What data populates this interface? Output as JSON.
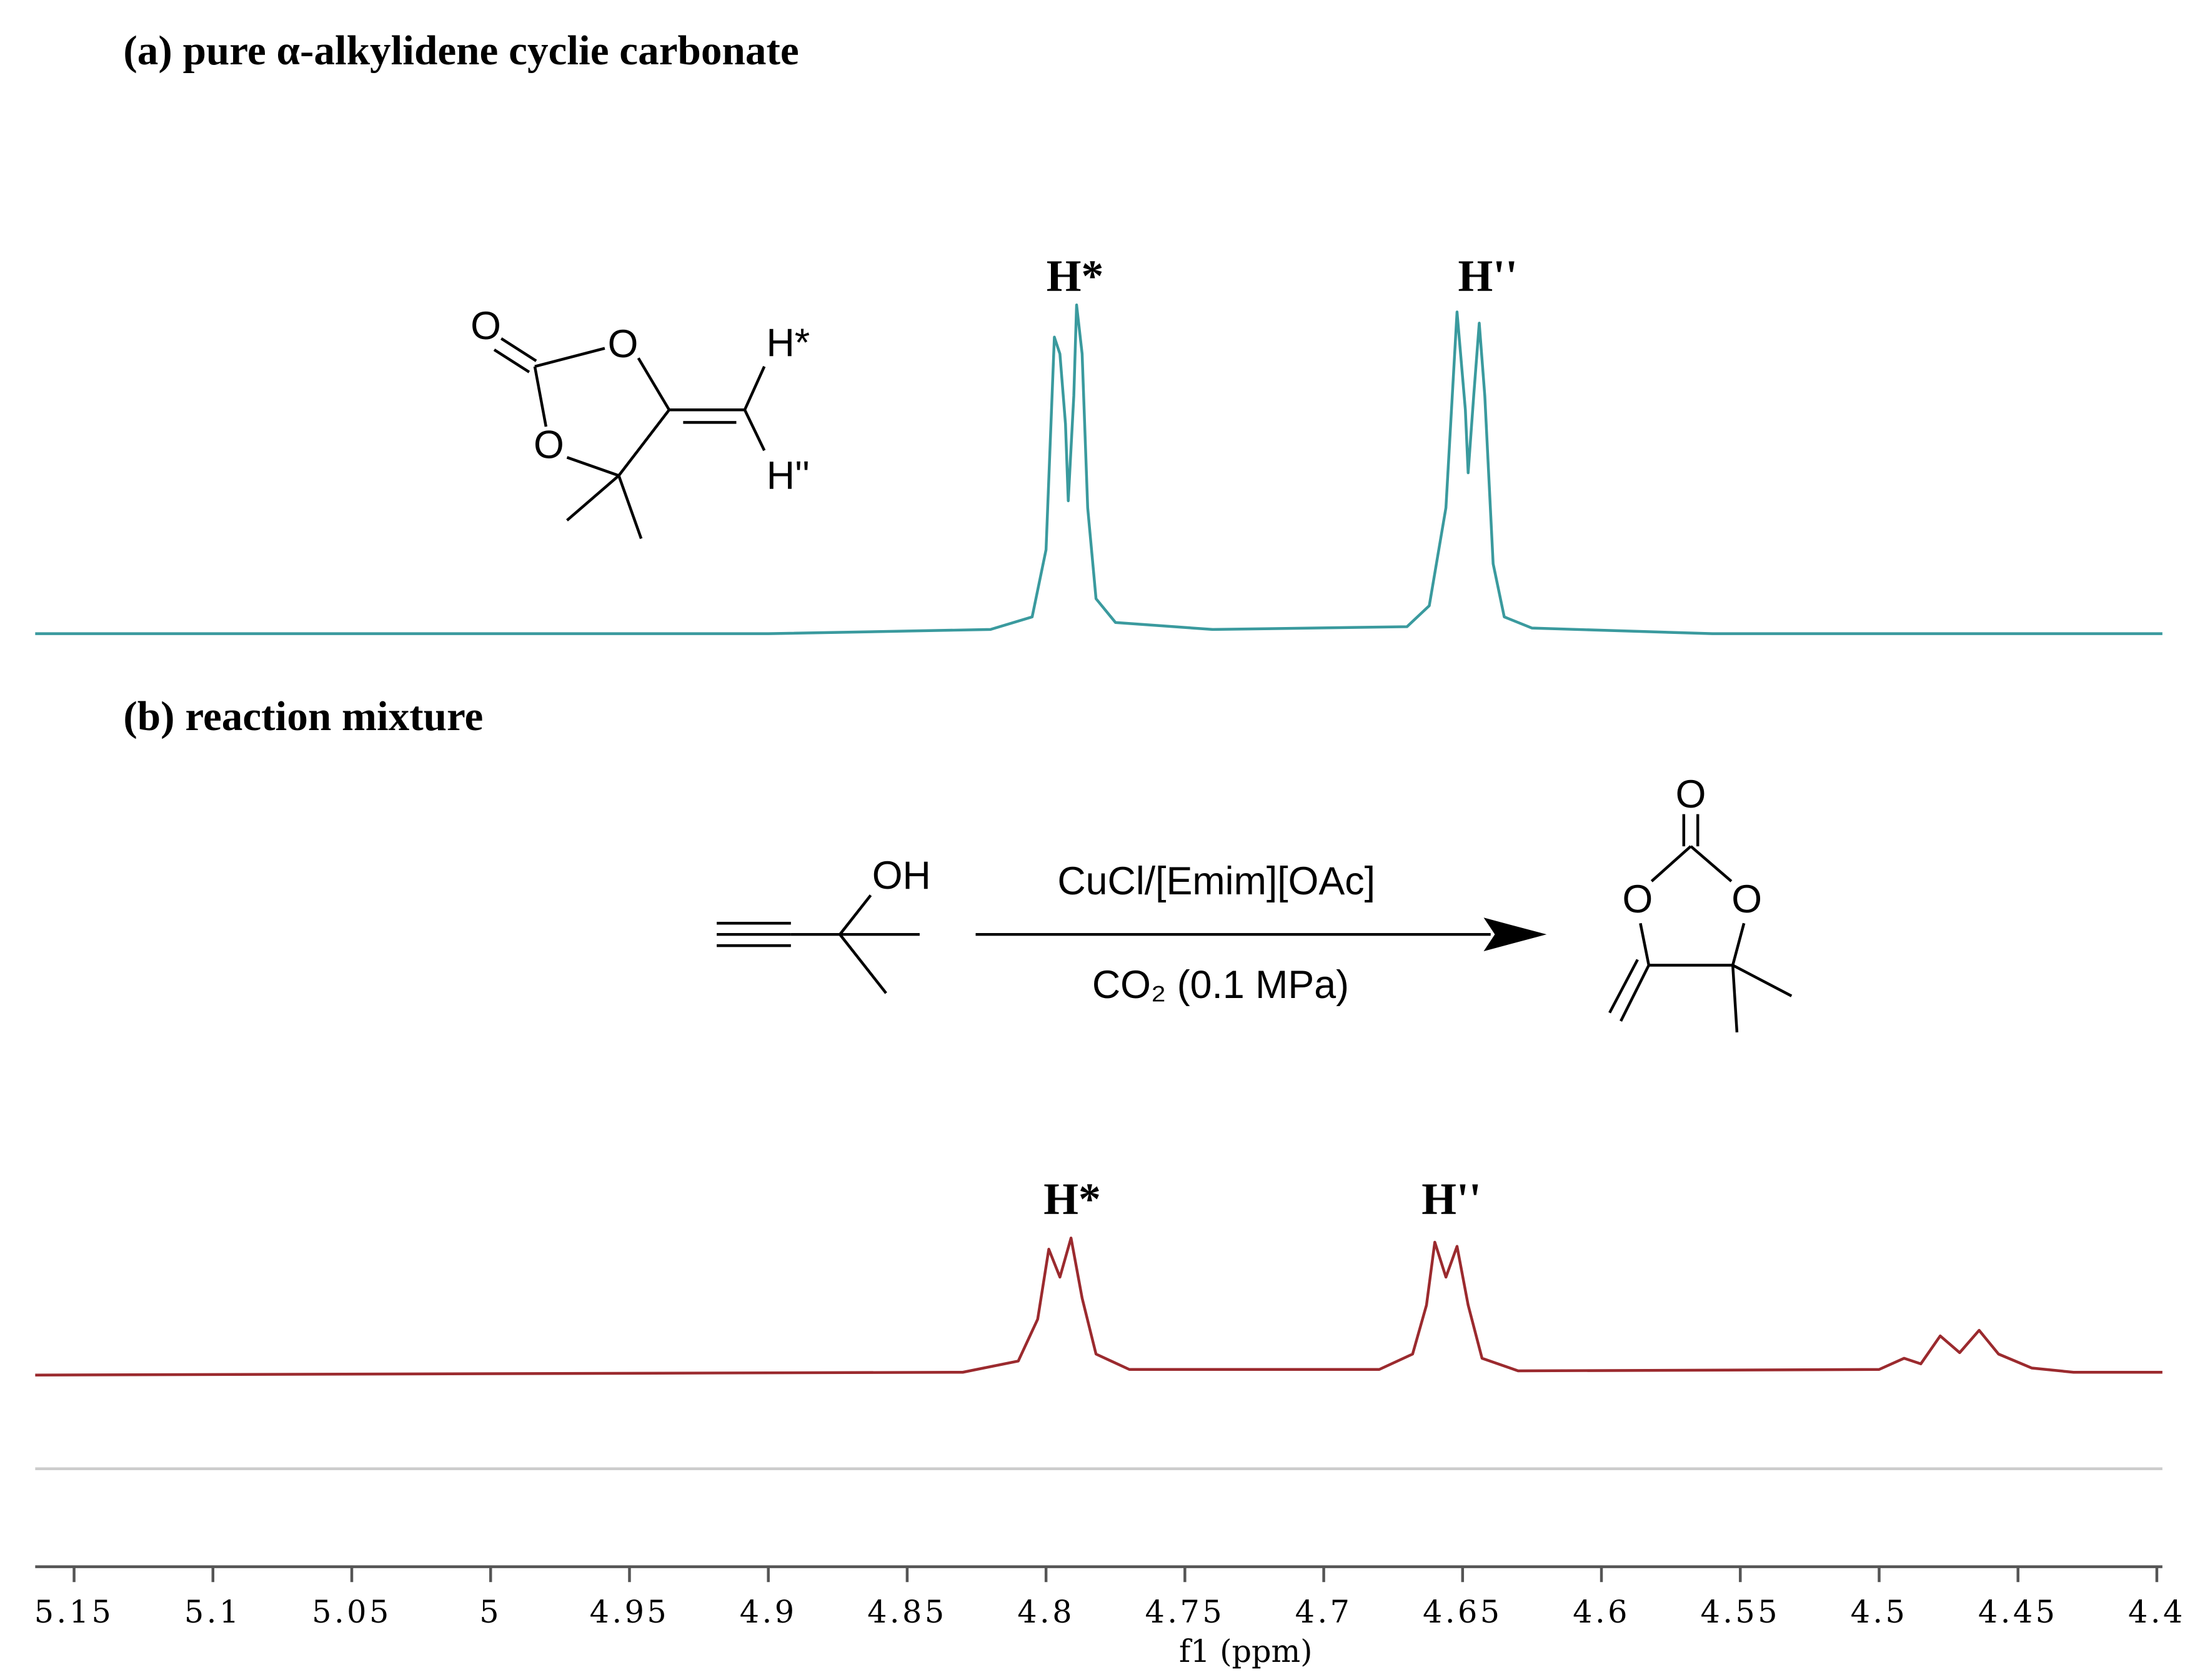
{
  "chart_data": {
    "type": "line",
    "xlabel": "f1 (ppm)",
    "xlim": [
      5.164,
      4.398
    ],
    "xticks": [
      5.15,
      5.1,
      5.05,
      5.0,
      4.95,
      4.9,
      4.85,
      4.8,
      4.75,
      4.7,
      4.65,
      4.6,
      4.55,
      4.5,
      4.45,
      4.4
    ],
    "series": [
      {
        "name": "(a) pure α-alkylidene cyclie carbonate",
        "color": "#3a9a9e",
        "x": [
          5.164,
          4.9,
          4.82,
          4.805,
          4.8,
          4.797,
          4.795,
          4.793,
          4.792,
          4.79,
          4.789,
          4.787,
          4.785,
          4.782,
          4.775,
          4.74,
          4.67,
          4.662,
          4.656,
          4.652,
          4.649,
          4.648,
          4.646,
          4.644,
          4.642,
          4.639,
          4.635,
          4.625,
          4.56,
          4.398
        ],
        "values": [
          0,
          0,
          3,
          12,
          60,
          212,
          200,
          150,
          95,
          170,
          235,
          200,
          90,
          25,
          8,
          3,
          5,
          20,
          90,
          230,
          160,
          115,
          170,
          222,
          170,
          50,
          12,
          4,
          0,
          0
        ],
        "peak_labels": [
          "H*",
          "H''"
        ]
      },
      {
        "name": "(b) reaction mixture",
        "color": "#9b2a2e",
        "x": [
          5.164,
          4.83,
          4.81,
          4.803,
          4.799,
          4.795,
          4.791,
          4.787,
          4.782,
          4.77,
          4.68,
          4.668,
          4.663,
          4.66,
          4.656,
          4.652,
          4.648,
          4.643,
          4.63,
          4.5,
          4.491,
          4.485,
          4.478,
          4.471,
          4.464,
          4.457,
          4.445,
          4.43,
          4.398
        ],
        "values": [
          0,
          2,
          10,
          40,
          90,
          70,
          98,
          55,
          15,
          4,
          4,
          15,
          50,
          95,
          70,
          92,
          50,
          12,
          3,
          4,
          12,
          8,
          28,
          16,
          32,
          15,
          5,
          2,
          2
        ],
        "peak_labels": [
          "H*",
          "H''"
        ]
      }
    ],
    "structure_a": {
      "atoms": [
        "O",
        "O",
        "O",
        "H*",
        "H''"
      ]
    },
    "reaction": {
      "reactant_atoms": [
        "OH"
      ],
      "reagent": "CuCl/[Emim][OAc]",
      "conditions": "CO₂ (0.1 MPa)",
      "product_atoms": [
        "O",
        "O",
        "O"
      ]
    }
  }
}
